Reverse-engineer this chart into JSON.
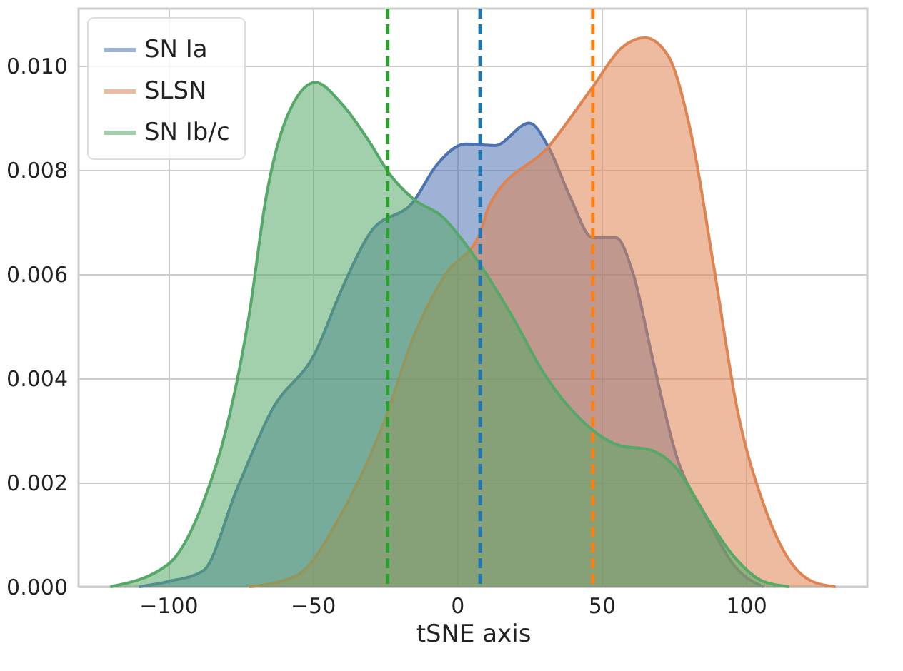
{
  "chart_data": {
    "type": "area",
    "xlabel": "tSNE axis",
    "xlim": [
      -131,
      142
    ],
    "xticks": [
      -100,
      -50,
      0,
      50,
      100
    ],
    "ylim": [
      0,
      0.0111
    ],
    "yticks": [
      {
        "value": 0,
        "label": "0.000"
      },
      0.002,
      0.004,
      0.006,
      0.008,
      {
        "value": 0.01,
        "label": "0.010"
      }
    ],
    "grid": true,
    "legend": "top left",
    "series": [
      {
        "name": "SN Ia",
        "color": "#4c72b0",
        "x": [
          -110,
          -100,
          -88,
          -76,
          -64,
          -49,
          -40,
          -30,
          -15,
          -7,
          3,
          13,
          25,
          32,
          39,
          47,
          55,
          61,
          68,
          76,
          86,
          96,
          106
        ],
        "values": [
          0,
          0.0001,
          0.0003,
          0.0019,
          0.0034,
          0.0045,
          0.0057,
          0.0068,
          0.0074,
          0.0081,
          0.0085,
          0.00847,
          0.0089,
          0.0084,
          0.0075,
          0.0067,
          0.0067,
          0.006,
          0.0043,
          0.0025,
          0.00137,
          0.0004,
          0
        ]
      },
      {
        "name": "SLSN",
        "color": "#dd8452",
        "x": [
          -72,
          -56,
          -40,
          -25,
          -15,
          -4,
          8,
          11,
          32,
          47,
          57,
          65,
          73,
          81,
          89,
          97,
          106,
          114,
          123,
          131
        ],
        "values": [
          0,
          0.0002,
          0.0014,
          0.0032,
          0.0048,
          0.006,
          0.0068,
          0.0073,
          0.00847,
          0.0096,
          0.01035,
          0.01054,
          0.0102,
          0.0087,
          0.0061,
          0.0034,
          0.0016,
          0.0006,
          0.0001,
          0
        ]
      },
      {
        "name": "SN Ib/c",
        "color": "#55a868",
        "x": [
          -120,
          -100,
          -88,
          -80,
          -72,
          -66,
          -59,
          -49,
          -40,
          -31,
          -23,
          -15,
          -5,
          4,
          19,
          30,
          43,
          57,
          66,
          76,
          86,
          96,
          106,
          115
        ],
        "values": [
          0,
          0.00043,
          0.0016,
          0.003,
          0.0052,
          0.0075,
          0.009,
          0.00968,
          0.00928,
          0.0086,
          0.0079,
          0.00744,
          0.0071,
          0.0065,
          0.0052,
          0.0041,
          0.0032,
          0.0027,
          0.00264,
          0.00227,
          0.00137,
          0.00057,
          0.0001,
          0
        ]
      }
    ],
    "ref_lines": [
      {
        "axis": "x",
        "value": -24,
        "color": "#2ca02c",
        "line_style": "dashed"
      },
      {
        "axis": "x",
        "value": 8,
        "color": "#1f77b4",
        "line_style": "dashed"
      },
      {
        "axis": "x",
        "value": 47,
        "color": "#ff7f0e",
        "line_style": "dashed"
      }
    ]
  }
}
